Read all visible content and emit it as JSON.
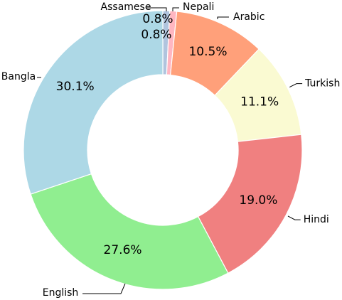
{
  "chart_data": {
    "type": "pie",
    "style": "donut",
    "start": "top",
    "direction": "clockwise",
    "slices": [
      {
        "label": "Assamese",
        "value": 0.8,
        "pct_label": "0.8%",
        "color": "#b0c4de"
      },
      {
        "label": "Nepali",
        "value": 0.8,
        "pct_label": "0.8%",
        "color": "#ffb6c1"
      },
      {
        "label": "Arabic",
        "value": 10.5,
        "pct_label": "10.5%",
        "color": "#ffa07a"
      },
      {
        "label": "Turkish",
        "value": 11.1,
        "pct_label": "11.1%",
        "color": "#fafad2"
      },
      {
        "label": "Hindi",
        "value": 19.0,
        "pct_label": "19.0%",
        "color": "#f08080"
      },
      {
        "label": "English",
        "value": 27.6,
        "pct_label": "27.6%",
        "color": "#90ee90"
      },
      {
        "label": "Bangla",
        "value": 30.1,
        "pct_label": "30.1%",
        "color": "#add8e6"
      }
    ]
  }
}
